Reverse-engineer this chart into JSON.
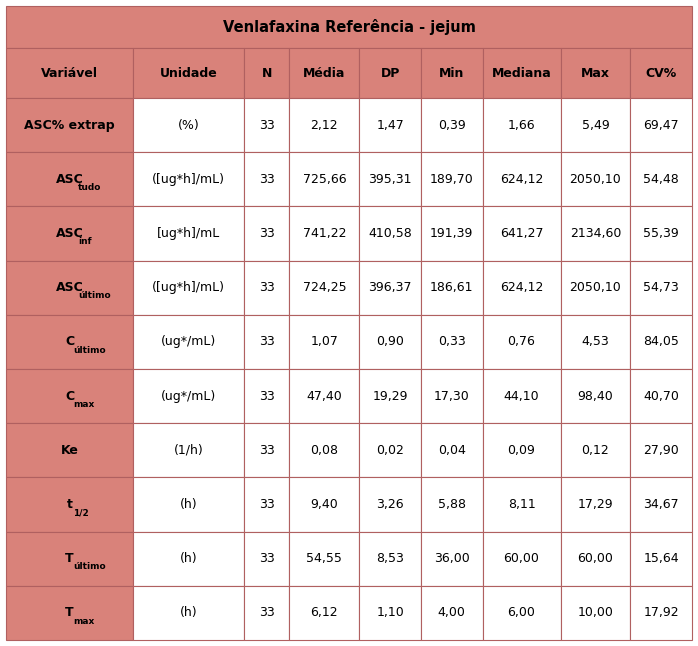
{
  "title": "Venlafaxina Referência - jejum",
  "headers": [
    "Variável",
    "Unidade",
    "N",
    "Média",
    "DP",
    "Min",
    "Mediana",
    "Max",
    "CV%"
  ],
  "col_widths_rel": [
    1.55,
    1.35,
    0.55,
    0.85,
    0.75,
    0.75,
    0.95,
    0.85,
    0.75
  ],
  "rows_data": [
    [
      "(%)",
      "33",
      "2,12",
      "1,47",
      "0,39",
      "1,66",
      "5,49",
      "69,47"
    ],
    [
      "([ug*h]/mL)",
      "33",
      "725,66",
      "395,31",
      "189,70",
      "624,12",
      "2050,10",
      "54,48"
    ],
    [
      "[ug*h]/mL",
      "33",
      "741,22",
      "410,58",
      "191,39",
      "641,27",
      "2134,60",
      "55,39"
    ],
    [
      "([ug*h]/mL)",
      "33",
      "724,25",
      "396,37",
      "186,61",
      "624,12",
      "2050,10",
      "54,73"
    ],
    [
      "(ug*/mL)",
      "33",
      "1,07",
      "0,90",
      "0,33",
      "0,76",
      "4,53",
      "84,05"
    ],
    [
      "(ug*/mL)",
      "33",
      "47,40",
      "19,29",
      "17,30",
      "44,10",
      "98,40",
      "40,70"
    ],
    [
      "(1/h)",
      "33",
      "0,08",
      "0,02",
      "0,04",
      "0,09",
      "0,12",
      "27,90"
    ],
    [
      "(h)",
      "33",
      "9,40",
      "3,26",
      "5,88",
      "8,11",
      "17,29",
      "34,67"
    ],
    [
      "(h)",
      "33",
      "54,55",
      "8,53",
      "36,00",
      "60,00",
      "60,00",
      "15,64"
    ],
    [
      "(h)",
      "33",
      "6,12",
      "1,10",
      "4,00",
      "6,00",
      "10,00",
      "17,92"
    ]
  ],
  "row_var_labels": [
    {
      "main": "ASC% extrap",
      "sub": ""
    },
    {
      "main": "ASC",
      "sub": "tudo"
    },
    {
      "main": "ASC",
      "sub": "inf"
    },
    {
      "main": "ASC",
      "sub": "último"
    },
    {
      "main": "C",
      "sub": "último"
    },
    {
      "main": "C",
      "sub": "max"
    },
    {
      "main": "Ke",
      "sub": ""
    },
    {
      "main": "t",
      "sub": "1/2"
    },
    {
      "main": "T",
      "sub": "último"
    },
    {
      "main": "T",
      "sub": "max"
    }
  ],
  "header_bg": "#d9827a",
  "title_bg": "#d9827a",
  "var_col_bg": "#d9827a",
  "data_col_bg": "#ffffff",
  "border_color": "#b06060",
  "title_fontsize": 10.5,
  "header_fontsize": 9.0,
  "cell_fontsize": 9.0,
  "var_fontsize": 9.0,
  "title_color": "#000000",
  "text_color": "#000000"
}
